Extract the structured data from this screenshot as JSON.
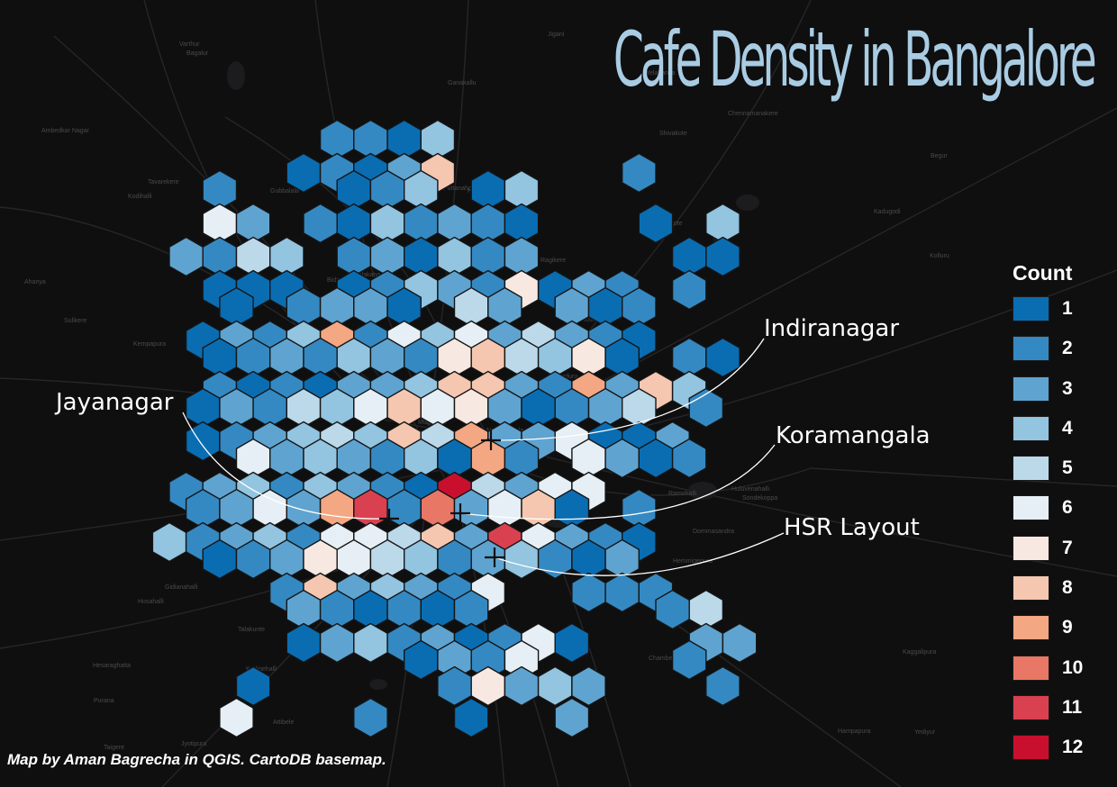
{
  "title": "Cafe Density in Bangalore",
  "legend": {
    "title": "Count",
    "items": [
      {
        "label": "1",
        "color": "#0a6db2"
      },
      {
        "label": "2",
        "color": "#3589c2"
      },
      {
        "label": "3",
        "color": "#5fa4d0"
      },
      {
        "label": "4",
        "color": "#93c4e0"
      },
      {
        "label": "5",
        "color": "#bcd9ea"
      },
      {
        "label": "6",
        "color": "#e6eff5"
      },
      {
        "label": "7",
        "color": "#f7e8e2"
      },
      {
        "label": "8",
        "color": "#f5c7b0"
      },
      {
        "label": "9",
        "color": "#f3a782"
      },
      {
        "label": "10",
        "color": "#e87765"
      },
      {
        "label": "11",
        "color": "#d94150"
      },
      {
        "label": "12",
        "color": "#c8102e"
      }
    ]
  },
  "annotations": [
    {
      "label": "Indiranagar"
    },
    {
      "label": "Jayanagar"
    },
    {
      "label": "Koramangala"
    },
    {
      "label": "HSR Layout"
    }
  ],
  "credit": "Map by Aman Bagrecha in QGIS. CartoDB basemap.",
  "basemap_places": [
    "Nelamangala",
    "Kodihalli",
    "Byata",
    "Hesaraghatta",
    "Huskuru",
    "Honnasandra",
    "Yelahanka",
    "Byalakere",
    "Shivakote",
    "Gunduru",
    "Bagalur",
    "Yediyur",
    "Kempapura",
    "Begur",
    "Mugabala",
    "Hoskote",
    "Jyotipura",
    "Puttanahalli",
    "Ragikere",
    "Gidianahalli",
    "Balakana",
    "Purana",
    "Kodigehalli",
    "Hosakote",
    "Nagadenahalli",
    "Sondekoppa",
    "Tavarekere",
    "Ganakallu",
    "Sulikere",
    "Ramohalli",
    "Kolluru",
    "Kumbalgodu",
    "Kenkeri",
    "Doddaballi",
    "Gubbalala",
    "Chennamanakere",
    "Agara",
    "Hampapura",
    "Kaggalipura",
    "Huluvenahalli",
    "Jigani",
    "Bidaraguppe",
    "Solleputtu",
    "Hemmigepura",
    "Attibele",
    "Ahanya",
    "Sonnadu",
    "Taigere",
    "Tavanahalli",
    "Madure",
    "Hosahalli",
    "Kadugodi",
    "Ambedkar Nagar",
    "Dommasandra",
    "Chambenahalli",
    "Talakunte",
    "Varthur"
  ]
}
